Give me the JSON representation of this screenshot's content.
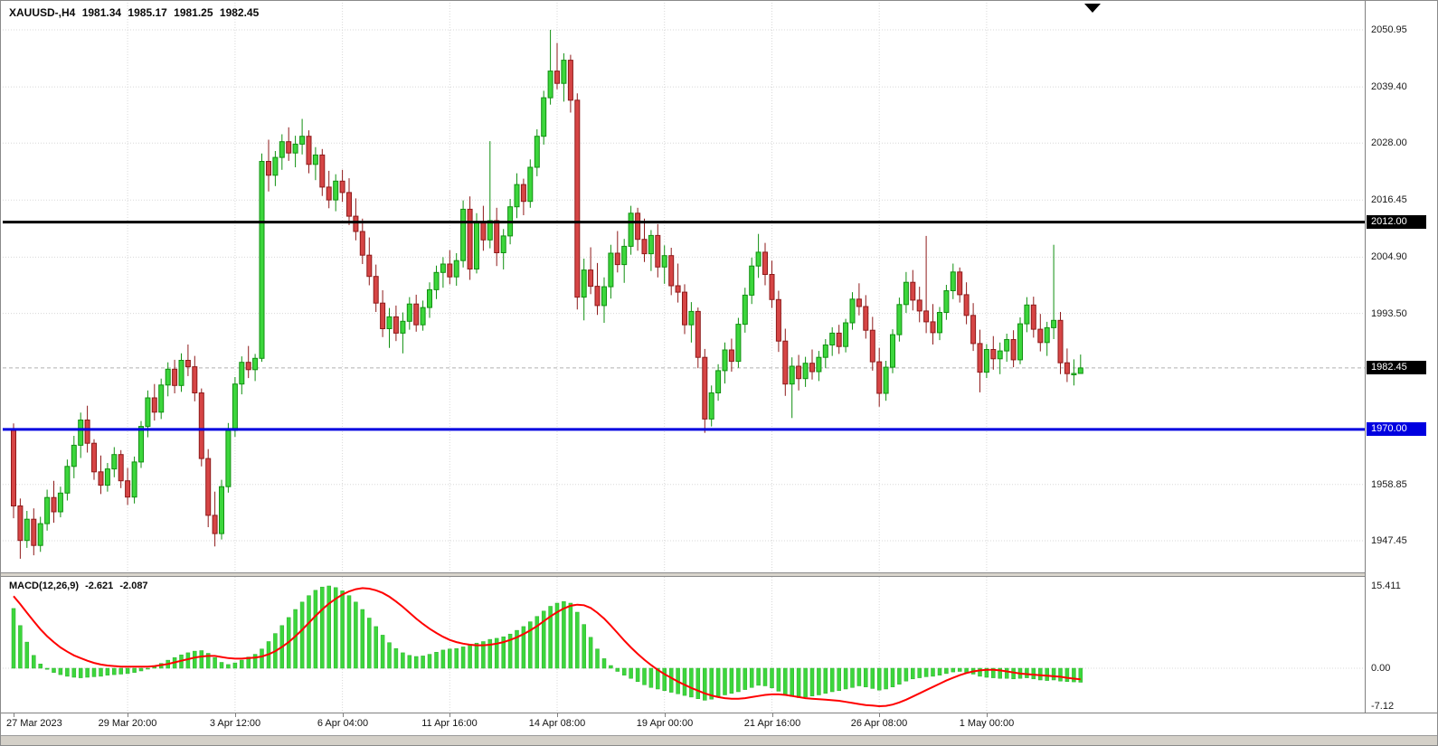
{
  "header": {
    "symbol_period": "XAUUSD-,H4",
    "open": "1981.34",
    "high": "1985.17",
    "low": "1981.25",
    "close": "1982.45"
  },
  "macd_panel": {
    "name": "MACD(12,26,9)",
    "value": "-2.621",
    "signal": "-2.087"
  },
  "price_axis": {
    "badges": [
      {
        "value": "2012.00",
        "bg": "#000000",
        "fg": "#ffffff"
      },
      {
        "value": "1982.45",
        "bg": "#000000",
        "fg": "#ffffff"
      },
      {
        "value": "1970.00",
        "bg": "#0000e0",
        "fg": "#ffffff"
      }
    ]
  },
  "colors": {
    "background": "#ffffff",
    "bull_fill": "#3cd63c",
    "bull_stroke": "#109010",
    "bear_fill": "#d64545",
    "bear_stroke": "#8e1a1a",
    "macd_hist": "#3cd63c",
    "macd_hist_stroke": "#2ab02a",
    "macd_signal": "#ff0000",
    "grid": "#d8d8d8",
    "current_line": "#b0b0b0",
    "axis_text": "#1a1a1a"
  },
  "chart_data": {
    "type": "candlestick",
    "title": "XAUUSD-,H4",
    "symbol": "XAUUSD-",
    "timeframe": "H4",
    "current_ohlc": {
      "open": 1981.34,
      "high": 1985.17,
      "low": 1981.25,
      "close": 1982.45
    },
    "y_axis_ticks": [
      "2050.95",
      "2039.40",
      "2028.00",
      "2016.45",
      "2004.90",
      "1993.50",
      "1958.85",
      "1947.45"
    ],
    "x_axis_ticks": [
      "27 Mar 2023",
      "29 Mar 20:00",
      "3 Apr 12:00",
      "6 Apr 04:00",
      "11 Apr 16:00",
      "14 Apr 08:00",
      "19 Apr 00:00",
      "21 Apr 16:00",
      "26 Apr 08:00",
      "1 May 00:00"
    ],
    "time_label_bars": [
      0,
      17,
      33,
      49,
      65,
      81,
      97,
      113,
      129,
      145
    ],
    "hlines": [
      {
        "price": 2012.0,
        "color": "#000000"
      },
      {
        "price": 1970.0,
        "color": "#0000e0"
      }
    ],
    "current_price": 1982.45,
    "candles": [
      [
        1969.8,
        1971.2,
        1952.0,
        1954.5
      ],
      [
        1954.5,
        1956.0,
        1943.8,
        1947.5
      ],
      [
        1947.5,
        1953.5,
        1946.0,
        1951.8
      ],
      [
        1951.8,
        1954.0,
        1944.5,
        1946.5
      ],
      [
        1946.5,
        1952.3,
        1945.2,
        1950.9
      ],
      [
        1950.9,
        1957.8,
        1949.5,
        1956.2
      ],
      [
        1956.2,
        1959.6,
        1951.1,
        1953.3
      ],
      [
        1953.3,
        1958.4,
        1952.2,
        1957.1
      ],
      [
        1957.1,
        1963.9,
        1955.6,
        1962.5
      ],
      [
        1962.5,
        1968.7,
        1960.1,
        1966.8
      ],
      [
        1966.8,
        1973.4,
        1964.2,
        1971.9
      ],
      [
        1971.9,
        1974.8,
        1965.3,
        1967.2
      ],
      [
        1967.2,
        1968.0,
        1959.8,
        1961.4
      ],
      [
        1961.4,
        1964.7,
        1956.9,
        1958.7
      ],
      [
        1958.7,
        1963.2,
        1957.4,
        1962.0
      ],
      [
        1962.0,
        1966.4,
        1960.3,
        1964.9
      ],
      [
        1964.9,
        1965.8,
        1958.1,
        1959.6
      ],
      [
        1959.6,
        1962.2,
        1954.7,
        1956.3
      ],
      [
        1956.3,
        1964.5,
        1955.0,
        1963.4
      ],
      [
        1963.4,
        1971.7,
        1962.2,
        1970.6
      ],
      [
        1970.6,
        1977.9,
        1968.4,
        1976.4
      ],
      [
        1976.4,
        1979.2,
        1971.8,
        1973.5
      ],
      [
        1973.5,
        1980.3,
        1972.1,
        1979.0
      ],
      [
        1979.0,
        1983.6,
        1976.7,
        1982.2
      ],
      [
        1982.2,
        1984.1,
        1977.3,
        1978.9
      ],
      [
        1978.9,
        1985.4,
        1977.6,
        1984.0
      ],
      [
        1984.0,
        1987.2,
        1980.8,
        1982.7
      ],
      [
        1982.7,
        1984.9,
        1975.7,
        1977.4
      ],
      [
        1977.4,
        1978.3,
        1962.5,
        1964.1
      ],
      [
        1964.1,
        1966.0,
        1950.2,
        1952.6
      ],
      [
        1952.6,
        1957.4,
        1946.3,
        1948.9
      ],
      [
        1948.9,
        1959.8,
        1947.7,
        1958.4
      ],
      [
        1958.4,
        1971.3,
        1957.2,
        1969.8
      ],
      [
        1969.8,
        1980.6,
        1968.5,
        1979.2
      ],
      [
        1979.2,
        1984.8,
        1977.1,
        1983.6
      ],
      [
        1983.6,
        1986.9,
        1980.4,
        1982.1
      ],
      [
        1982.1,
        1985.3,
        1979.8,
        1984.4
      ],
      [
        1984.4,
        2025.9,
        1983.7,
        2024.3
      ],
      [
        2024.3,
        2028.7,
        2018.2,
        2021.5
      ],
      [
        2021.5,
        2026.4,
        2019.3,
        2025.1
      ],
      [
        2025.1,
        2029.8,
        2022.6,
        2028.3
      ],
      [
        2028.3,
        2031.2,
        2024.4,
        2026.0
      ],
      [
        2026.0,
        2029.5,
        2023.1,
        2027.8
      ],
      [
        2027.8,
        2032.9,
        2025.7,
        2029.4
      ],
      [
        2029.4,
        2030.6,
        2021.9,
        2023.7
      ],
      [
        2023.7,
        2027.2,
        2020.5,
        2025.6
      ],
      [
        2025.6,
        2026.8,
        2017.3,
        2019.1
      ],
      [
        2019.1,
        2022.4,
        2014.8,
        2016.5
      ],
      [
        2016.5,
        2021.7,
        2014.2,
        2020.3
      ],
      [
        2020.3,
        2022.6,
        2016.1,
        2018.0
      ],
      [
        2018.0,
        2020.9,
        2011.4,
        2013.2
      ],
      [
        2013.2,
        2016.8,
        2008.3,
        2010.1
      ],
      [
        2010.1,
        2012.7,
        2003.5,
        2005.3
      ],
      [
        2005.3,
        2008.9,
        1999.2,
        2001.0
      ],
      [
        2001.0,
        2003.4,
        1993.8,
        1995.6
      ],
      [
        1995.6,
        1998.2,
        1988.7,
        1990.4
      ],
      [
        1990.4,
        1994.6,
        1986.5,
        1992.8
      ],
      [
        1992.8,
        1995.1,
        1987.9,
        1989.5
      ],
      [
        1989.5,
        1993.7,
        1985.4,
        1991.9
      ],
      [
        1991.9,
        1996.8,
        1990.2,
        1995.4
      ],
      [
        1995.4,
        1997.3,
        1989.8,
        1991.2
      ],
      [
        1991.2,
        1996.1,
        1990.0,
        1994.7
      ],
      [
        1994.7,
        1999.8,
        1992.6,
        1998.3
      ],
      [
        1998.3,
        2003.2,
        1996.4,
        2001.8
      ],
      [
        2001.8,
        2004.9,
        1998.7,
        2003.5
      ],
      [
        2003.5,
        2006.3,
        1999.4,
        2000.9
      ],
      [
        2000.9,
        2005.7,
        1999.1,
        2004.2
      ],
      [
        2004.2,
        2016.4,
        2002.8,
        2014.6
      ],
      [
        2014.6,
        2017.2,
        2000.3,
        2002.5
      ],
      [
        2002.5,
        2013.8,
        2001.6,
        2011.9
      ],
      [
        2011.9,
        2015.3,
        2006.2,
        2008.4
      ],
      [
        2008.4,
        2028.4,
        2006.7,
        2012.3
      ],
      [
        2012.3,
        2014.9,
        2003.1,
        2005.8
      ],
      [
        2005.8,
        2010.6,
        2002.4,
        2009.2
      ],
      [
        2009.2,
        2016.7,
        2007.5,
        2015.1
      ],
      [
        2015.1,
        2021.9,
        2012.8,
        2019.6
      ],
      [
        2019.6,
        2020.8,
        2013.4,
        2016.2
      ],
      [
        2016.2,
        2024.7,
        2014.9,
        2023.1
      ],
      [
        2023.1,
        2030.8,
        2021.3,
        2029.4
      ],
      [
        2029.4,
        2038.6,
        2027.7,
        2037.2
      ],
      [
        2037.2,
        2050.95,
        2035.8,
        2042.6
      ],
      [
        2042.6,
        2048.3,
        2038.9,
        2040.1
      ],
      [
        2040.1,
        2046.2,
        2036.4,
        2044.8
      ],
      [
        2044.8,
        2045.9,
        2034.2,
        2036.7
      ],
      [
        2036.7,
        2038.1,
        1994.3,
        1996.8
      ],
      [
        1996.8,
        2004.6,
        1992.1,
        2002.3
      ],
      [
        2002.3,
        2006.9,
        1997.4,
        1999.0
      ],
      [
        1999.0,
        2003.7,
        1993.2,
        1995.1
      ],
      [
        1995.1,
        2000.8,
        1991.6,
        1998.9
      ],
      [
        1998.9,
        2007.4,
        1996.5,
        2005.7
      ],
      [
        2005.7,
        2010.2,
        2001.8,
        2003.4
      ],
      [
        2003.4,
        2008.6,
        1999.7,
        2007.1
      ],
      [
        2007.1,
        2015.3,
        2005.4,
        2013.8
      ],
      [
        2013.8,
        2014.9,
        2006.2,
        2008.5
      ],
      [
        2008.5,
        2012.7,
        2003.9,
        2005.6
      ],
      [
        2005.6,
        2010.4,
        2002.1,
        2009.3
      ],
      [
        2009.3,
        2011.6,
        2000.8,
        2002.9
      ],
      [
        2002.9,
        2007.3,
        1999.5,
        2005.2
      ],
      [
        2005.2,
        2006.8,
        1997.2,
        1999.1
      ],
      [
        1999.1,
        2003.6,
        1995.7,
        1997.8
      ],
      [
        1997.8,
        1999.4,
        1989.3,
        1991.2
      ],
      [
        1991.2,
        1995.8,
        1987.6,
        1993.9
      ],
      [
        1993.9,
        1994.7,
        1982.4,
        1984.6
      ],
      [
        1984.6,
        1986.3,
        1969.3,
        1972.1
      ],
      [
        1972.1,
        1978.9,
        1970.6,
        1977.4
      ],
      [
        1977.4,
        1983.2,
        1975.8,
        1981.9
      ],
      [
        1981.9,
        1987.6,
        1979.3,
        1986.1
      ],
      [
        1986.1,
        1988.4,
        1981.7,
        1983.8
      ],
      [
        1983.8,
        1992.6,
        1982.5,
        1991.3
      ],
      [
        1991.3,
        1998.7,
        1989.6,
        1997.2
      ],
      [
        1997.2,
        2004.8,
        1995.4,
        2003.1
      ],
      [
        2003.1,
        2009.6,
        2000.7,
        2005.9
      ],
      [
        2005.9,
        2007.8,
        1999.2,
        2001.4
      ],
      [
        2001.4,
        2004.2,
        1994.6,
        1996.3
      ],
      [
        1996.3,
        1998.1,
        1985.7,
        1987.9
      ],
      [
        1987.9,
        1990.4,
        1976.8,
        1979.2
      ],
      [
        1979.2,
        1984.6,
        1972.3,
        1982.8
      ],
      [
        1982.8,
        1985.1,
        1977.9,
        1980.3
      ],
      [
        1980.3,
        1984.7,
        1978.6,
        1983.4
      ],
      [
        1983.4,
        1986.2,
        1980.1,
        1981.7
      ],
      [
        1981.7,
        1985.9,
        1979.8,
        1984.6
      ],
      [
        1984.6,
        1988.3,
        1982.4,
        1987.1
      ],
      [
        1987.1,
        1990.7,
        1984.9,
        1989.5
      ],
      [
        1989.5,
        1991.2,
        1985.3,
        1986.8
      ],
      [
        1986.8,
        1992.4,
        1985.6,
        1991.6
      ],
      [
        1991.6,
        1997.8,
        1990.2,
        1996.4
      ],
      [
        1996.4,
        1999.6,
        1993.1,
        1994.9
      ],
      [
        1994.9,
        1997.2,
        1988.4,
        1990.1
      ],
      [
        1990.1,
        1992.8,
        1981.9,
        1983.7
      ],
      [
        1983.7,
        1986.5,
        1974.6,
        1977.3
      ],
      [
        1977.3,
        1983.9,
        1975.8,
        1982.6
      ],
      [
        1982.6,
        1990.3,
        1981.4,
        1989.2
      ],
      [
        1989.2,
        1996.7,
        1987.8,
        1995.3
      ],
      [
        1995.3,
        2001.9,
        1993.6,
        1999.8
      ],
      [
        1999.8,
        2002.3,
        1994.1,
        1996.2
      ],
      [
        1996.2,
        1998.9,
        1991.7,
        1994.0
      ],
      [
        1994.0,
        2009.2,
        1989.5,
        1991.8
      ],
      [
        1991.8,
        1995.4,
        1987.2,
        1989.6
      ],
      [
        1989.6,
        1994.8,
        1988.1,
        1993.7
      ],
      [
        1993.7,
        1999.3,
        1992.2,
        1998.1
      ],
      [
        1998.1,
        2003.6,
        1996.4,
        2001.9
      ],
      [
        2001.9,
        2002.8,
        1995.7,
        1997.3
      ],
      [
        1997.3,
        1999.8,
        1991.3,
        1993.1
      ],
      [
        1993.1,
        1995.6,
        1985.9,
        1987.4
      ],
      [
        1987.4,
        1990.2,
        1977.5,
        1981.6
      ],
      [
        1981.6,
        1987.3,
        1980.4,
        1986.2
      ],
      [
        1986.2,
        1988.9,
        1982.1,
        1984.3
      ],
      [
        1984.3,
        1987.6,
        1981.2,
        1985.9
      ],
      [
        1985.9,
        1989.4,
        1983.7,
        1988.2
      ],
      [
        1988.2,
        1990.1,
        1982.6,
        1984.1
      ],
      [
        1984.1,
        1992.7,
        1983.2,
        1991.4
      ],
      [
        1991.4,
        1996.8,
        1989.7,
        1995.2
      ],
      [
        1995.2,
        1996.9,
        1988.6,
        1990.3
      ],
      [
        1990.3,
        1993.4,
        1985.8,
        1987.6
      ],
      [
        1987.6,
        1991.8,
        1984.9,
        1990.6
      ],
      [
        1990.6,
        2007.4,
        1988.3,
        1992.1
      ],
      [
        1992.1,
        1993.8,
        1981.2,
        1983.5
      ],
      [
        1983.5,
        1986.4,
        1979.6,
        1981.3
      ],
      [
        1981.3,
        1984.2,
        1978.9,
        1981.34
      ],
      [
        1981.34,
        1985.17,
        1981.25,
        1982.45
      ]
    ],
    "macd": {
      "params": "12,26,9",
      "macd_value": -2.621,
      "signal_value": -2.087,
      "axis_tick_labels": [
        "15.411",
        "0.00",
        "-7.12"
      ],
      "histogram": [
        11.2,
        8.0,
        4.9,
        2.4,
        0.8,
        -0.2,
        -0.8,
        -1.2,
        -1.5,
        -1.7,
        -1.8,
        -1.7,
        -1.6,
        -1.5,
        -1.3,
        -1.2,
        -1.1,
        -1.0,
        -0.8,
        -0.5,
        -0.1,
        0.4,
        0.9,
        1.5,
        2.0,
        2.5,
        2.9,
        3.2,
        3.3,
        2.8,
        2.0,
        1.1,
        0.7,
        1.0,
        1.5,
        2.1,
        2.6,
        3.6,
        5.0,
        6.5,
        8.0,
        9.5,
        11.0,
        12.4,
        13.6,
        14.6,
        15.2,
        15.411,
        15.1,
        14.5,
        13.6,
        12.4,
        11.0,
        9.4,
        7.8,
        6.2,
        4.8,
        3.7,
        2.9,
        2.4,
        2.2,
        2.3,
        2.6,
        3.0,
        3.4,
        3.6,
        3.7,
        4.0,
        4.3,
        4.7,
        5.0,
        5.4,
        5.6,
        5.9,
        6.4,
        7.1,
        7.8,
        8.7,
        9.7,
        10.7,
        11.6,
        12.2,
        12.5,
        12.2,
        10.5,
        8.2,
        5.8,
        3.6,
        1.8,
        0.5,
        -0.6,
        -1.3,
        -1.9,
        -2.5,
        -3.1,
        -3.6,
        -3.9,
        -4.2,
        -4.5,
        -4.8,
        -5.1,
        -5.4,
        -5.7,
        -6.0,
        -5.8,
        -5.4,
        -5.0,
        -4.7,
        -4.4,
        -4.0,
        -3.6,
        -3.2,
        -3.3,
        -3.7,
        -4.3,
        -4.9,
        -5.3,
        -5.5,
        -5.4,
        -5.2,
        -5.0,
        -4.7,
        -4.4,
        -4.2,
        -3.9,
        -3.6,
        -3.3,
        -3.5,
        -3.8,
        -4.1,
        -3.9,
        -3.5,
        -3.0,
        -2.4,
        -2.0,
        -1.8,
        -1.6,
        -1.5,
        -1.3,
        -1.0,
        -0.7,
        -0.6,
        -0.8,
        -1.1,
        -1.5,
        -1.7,
        -1.8,
        -1.9,
        -1.9,
        -2.0,
        -1.9,
        -1.8,
        -2.0,
        -2.2,
        -2.3,
        -2.2,
        -2.4,
        -2.5,
        -2.55,
        -2.621
      ],
      "signal": [
        13.5,
        12.0,
        10.4,
        8.8,
        7.3,
        6.0,
        4.9,
        3.9,
        3.1,
        2.4,
        1.9,
        1.4,
        1.0,
        0.7,
        0.5,
        0.4,
        0.3,
        0.3,
        0.3,
        0.3,
        0.3,
        0.4,
        0.6,
        0.8,
        1.1,
        1.4,
        1.7,
        2.0,
        2.2,
        2.3,
        2.3,
        2.1,
        1.9,
        1.8,
        1.8,
        1.9,
        2.0,
        2.2,
        2.6,
        3.2,
        4.0,
        4.9,
        6.0,
        7.2,
        8.5,
        9.8,
        11.0,
        12.1,
        13.0,
        13.8,
        14.4,
        14.8,
        15.0,
        14.9,
        14.6,
        14.1,
        13.4,
        12.5,
        11.5,
        10.4,
        9.3,
        8.3,
        7.4,
        6.6,
        5.9,
        5.3,
        4.9,
        4.6,
        4.4,
        4.3,
        4.3,
        4.4,
        4.6,
        4.9,
        5.3,
        5.8,
        6.4,
        7.1,
        7.9,
        8.8,
        9.7,
        10.5,
        11.2,
        11.7,
        11.9,
        11.8,
        11.3,
        10.4,
        9.3,
        8.0,
        6.6,
        5.2,
        3.9,
        2.7,
        1.6,
        0.6,
        -0.3,
        -1.1,
        -1.8,
        -2.5,
        -3.1,
        -3.7,
        -4.2,
        -4.7,
        -5.1,
        -5.4,
        -5.6,
        -5.7,
        -5.7,
        -5.6,
        -5.4,
        -5.2,
        -5.0,
        -4.9,
        -4.9,
        -5.0,
        -5.2,
        -5.4,
        -5.6,
        -5.7,
        -5.8,
        -5.9,
        -6.0,
        -6.1,
        -6.3,
        -6.5,
        -6.7,
        -6.9,
        -7.0,
        -7.12,
        -7.05,
        -6.8,
        -6.4,
        -5.9,
        -5.3,
        -4.7,
        -4.1,
        -3.5,
        -2.9,
        -2.3,
        -1.8,
        -1.3,
        -0.9,
        -0.6,
        -0.4,
        -0.3,
        -0.3,
        -0.4,
        -0.6,
        -0.8,
        -1.0,
        -1.1,
        -1.2,
        -1.3,
        -1.4,
        -1.5,
        -1.6,
        -1.8,
        -1.95,
        -2.087
      ]
    }
  }
}
